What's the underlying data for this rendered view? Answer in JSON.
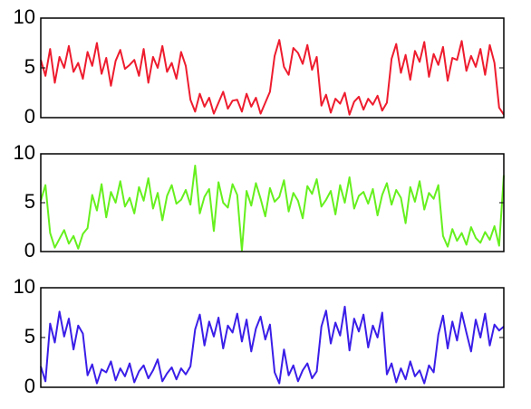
{
  "chart_data": [
    {
      "type": "line",
      "ylim": [
        0,
        10
      ],
      "yticks": [
        0,
        5,
        10
      ],
      "grid": false,
      "series": [
        {
          "color": "#ee1c2e",
          "values": [
            5.8,
            4.2,
            6.9,
            3.5,
            6.1,
            5.0,
            7.2,
            4.6,
            5.5,
            3.9,
            6.6,
            5.2,
            7.5,
            4.4,
            6.0,
            3.2,
            5.7,
            6.8,
            4.9,
            5.3,
            5.8,
            4.2,
            6.9,
            3.5,
            6.1,
            5.0,
            7.2,
            4.6,
            5.5,
            3.9,
            6.6,
            5.2,
            1.8,
            0.6,
            2.4,
            1.1,
            2.0,
            0.4,
            1.5,
            2.6,
            0.9,
            1.7,
            1.8,
            0.6,
            2.4,
            1.1,
            2.0,
            0.4,
            1.5,
            2.6,
            6.2,
            7.8,
            5.1,
            4.3,
            7.0,
            6.5,
            5.4,
            7.3,
            4.8,
            6.1,
            1.2,
            2.3,
            0.5,
            1.9,
            1.4,
            2.5,
            0.3,
            1.6,
            2.1,
            0.8,
            1.9,
            1.3,
            2.2,
            0.7,
            1.5,
            5.9,
            7.4,
            4.5,
            6.3,
            3.8,
            6.7,
            5.6,
            7.6,
            4.1,
            6.4,
            5.3,
            7.1,
            3.7,
            6.0,
            5.8,
            7.7,
            4.7,
            6.2,
            5.1,
            6.9,
            4.3,
            7.3,
            5.5,
            1.0,
            0.3
          ]
        }
      ]
    },
    {
      "type": "line",
      "ylim": [
        0,
        10
      ],
      "yticks": [
        0,
        5,
        10
      ],
      "grid": false,
      "series": [
        {
          "color": "#66f01e",
          "values": [
            5.2,
            6.8,
            1.9,
            0.4,
            1.3,
            2.2,
            0.8,
            1.6,
            0.3,
            1.8,
            2.4,
            5.8,
            4.2,
            6.9,
            3.5,
            6.1,
            5.0,
            7.2,
            4.6,
            5.5,
            3.9,
            6.6,
            5.2,
            7.5,
            4.4,
            6.0,
            3.2,
            5.7,
            6.8,
            4.9,
            5.3,
            6.3,
            4.8,
            8.8,
            3.9,
            5.6,
            6.4,
            2.1,
            7.1,
            5.0,
            4.5,
            6.9,
            5.8,
            0.1,
            6.2,
            4.7,
            7.0,
            5.4,
            3.6,
            6.5,
            5.1,
            5.6,
            7.3,
            4.1,
            6.0,
            5.2,
            3.4,
            6.7,
            5.9,
            7.4,
            4.6,
            5.3,
            6.2,
            3.8,
            6.8,
            5.0,
            7.6,
            4.4,
            5.7,
            6.1,
            4.9,
            6.4,
            3.7,
            5.8,
            7.0,
            4.8,
            6.3,
            5.5,
            2.9,
            6.6,
            5.1,
            7.2,
            4.3,
            6.0,
            5.4,
            6.8,
            1.6,
            0.5,
            2.3,
            1.1,
            1.9,
            0.7,
            2.5,
            1.4,
            0.9,
            2.0,
            1.2,
            2.6,
            0.6,
            7.8
          ]
        }
      ]
    },
    {
      "type": "line",
      "ylim": [
        0,
        10
      ],
      "yticks": [
        0,
        5,
        10
      ],
      "grid": false,
      "series": [
        {
          "color": "#3a1ee8",
          "values": [
            2.1,
            0.6,
            6.4,
            4.5,
            7.6,
            5.1,
            6.9,
            3.8,
            6.2,
            5.4,
            1.2,
            2.3,
            0.4,
            1.8,
            1.5,
            2.6,
            0.7,
            1.9,
            1.1,
            2.4,
            0.5,
            1.6,
            2.2,
            0.9,
            1.7,
            2.8,
            0.6,
            1.4,
            2.0,
            0.8,
            1.9,
            1.3,
            2.1,
            5.8,
            7.3,
            4.2,
            6.6,
            5.1,
            7.0,
            3.9,
            6.2,
            5.5,
            7.4,
            4.6,
            6.8,
            3.6,
            5.9,
            7.1,
            4.8,
            6.3,
            1.5,
            0.4,
            3.8,
            1.2,
            2.2,
            0.6,
            1.7,
            2.4,
            0.9,
            1.6,
            6.1,
            7.7,
            4.4,
            6.5,
            5.2,
            8.1,
            3.7,
            6.9,
            5.6,
            7.3,
            4.0,
            6.2,
            5.0,
            7.5,
            1.3,
            2.4,
            0.5,
            1.9,
            0.8,
            2.6,
            1.1,
            1.7,
            0.4,
            2.2,
            1.5,
            5.3,
            7.2,
            3.9,
            6.6,
            4.7,
            7.5,
            5.5,
            3.6,
            6.8,
            5.0,
            7.4,
            4.2,
            6.3,
            5.7,
            6.1
          ]
        }
      ]
    }
  ]
}
